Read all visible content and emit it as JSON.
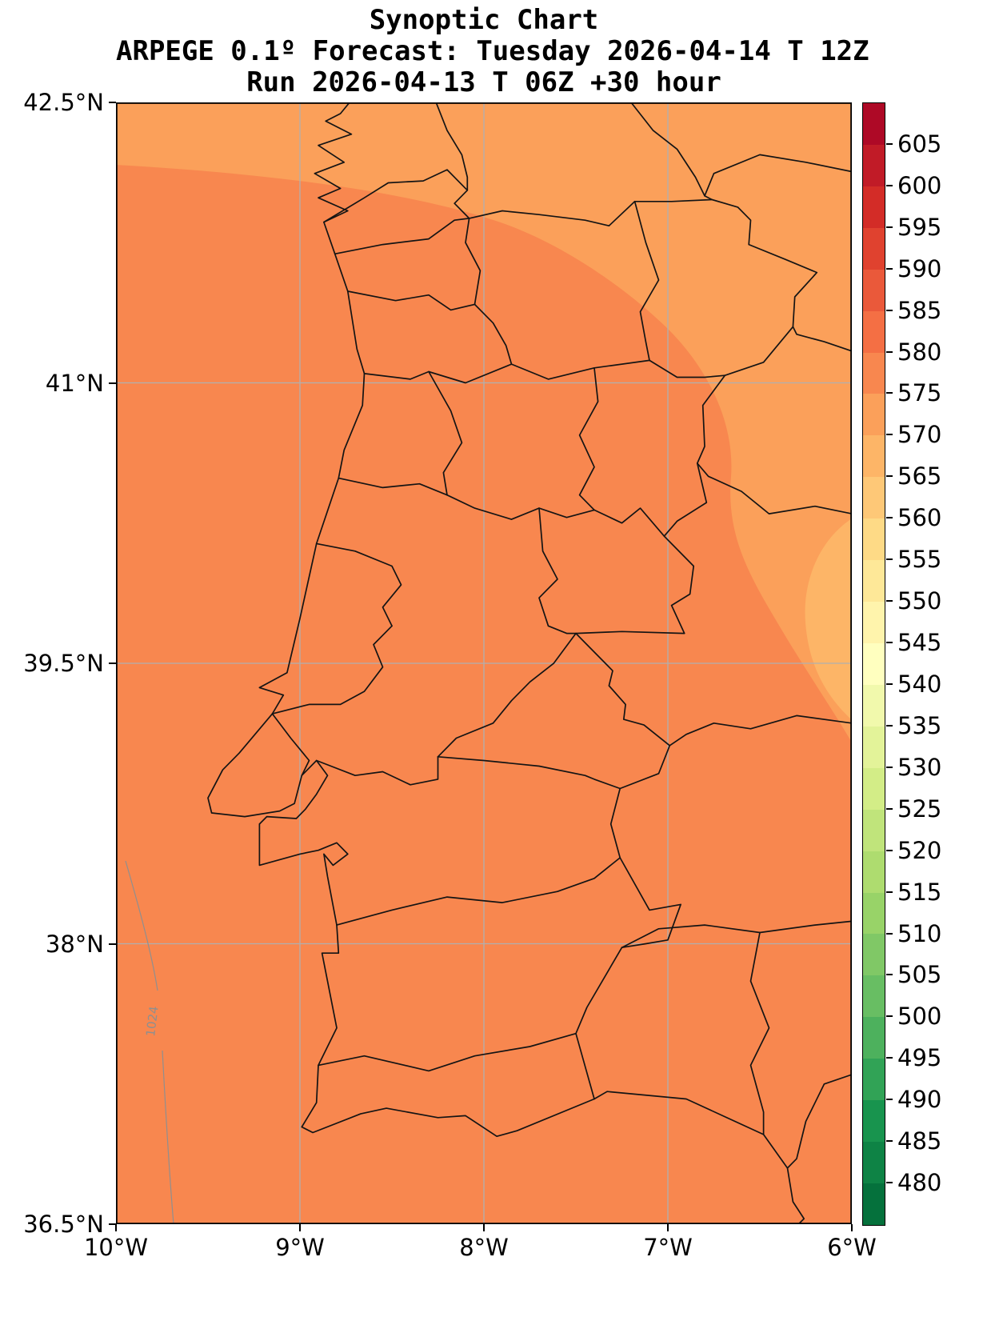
{
  "figure": {
    "title": "Synoptic Chart",
    "subtitle": "ARPEGE 0.1º Forecast: Tuesday 2026-04-14 T 12Z",
    "run_line": "Run 2026-04-13 T 06Z +30 hour"
  },
  "axes": {
    "y_ticks": [
      {
        "label": "42.5°N",
        "lat": 42.5
      },
      {
        "label": "41°N",
        "lat": 41
      },
      {
        "label": "39.5°N",
        "lat": 39.5
      },
      {
        "label": "38°N",
        "lat": 38
      },
      {
        "label": "36.5°N",
        "lat": 36.5
      }
    ],
    "x_ticks": [
      {
        "label": "10°W",
        "lon": -10
      },
      {
        "label": "9°W",
        "lon": -9
      },
      {
        "label": "8°W",
        "lon": -8
      },
      {
        "label": "7°W",
        "lon": -7
      },
      {
        "label": "6°W",
        "lon": -6
      }
    ],
    "lat_range": [
      36.5,
      42.5
    ],
    "lon_range": [
      -10,
      -6
    ],
    "grid": true,
    "grid_color": "#b0b0b0"
  },
  "colorbar": {
    "value_min": 475,
    "value_max": 610,
    "segment_step": 5,
    "tick_labels": [
      605,
      600,
      595,
      590,
      585,
      580,
      575,
      570,
      565,
      560,
      555,
      550,
      545,
      540,
      535,
      530,
      525,
      520,
      515,
      510,
      505,
      500,
      495,
      490,
      485,
      480
    ],
    "segment_colors_bottom_to_top": [
      "#05713c",
      "#0e8345",
      "#18944e",
      "#31a356",
      "#4db15d",
      "#68be63",
      "#80c866",
      "#98d368",
      "#aedc6f",
      "#c0e47b",
      "#d3ed87",
      "#e3f399",
      "#f1f9ac",
      "#ffffbf",
      "#fff4ac",
      "#fee898",
      "#feda86",
      "#fec877",
      "#fdb567",
      "#fba05a",
      "#f8874f",
      "#f46f44",
      "#ea593a",
      "#e0422f",
      "#d32c27",
      "#c11b27",
      "#ae0926"
    ]
  },
  "map": {
    "field_main_color": "#f8874f",
    "field_light_color": "#fba05a",
    "field_lighter_color": "#fdb567",
    "boundary_color": "#141414",
    "frame_color": "#000000",
    "isobar": {
      "label": "1024",
      "color": "#8f8f8f"
    }
  },
  "chart_data": {
    "type": "heatmap",
    "title": "Synoptic Chart",
    "subtitle": "ARPEGE 0.1º Forecast: Tuesday 2026-04-14 T 12Z",
    "run_line": "Run 2026-04-13 T 06Z +30 hour",
    "region_shown": "Portugal and western Spain with district/province boundaries",
    "x_axis": {
      "tick_labels": [
        "10°W",
        "9°W",
        "8°W",
        "7°W",
        "6°W"
      ],
      "range_lon": [
        -10,
        -6
      ]
    },
    "y_axis": {
      "tick_labels": [
        "42.5°N",
        "41°N",
        "39.5°N",
        "38°N",
        "36.5°N"
      ],
      "range_lat": [
        36.5,
        42.5
      ]
    },
    "colorbar": {
      "range": [
        475,
        610
      ],
      "tick_step": 5,
      "tick_labels": [
        605,
        600,
        595,
        590,
        585,
        580,
        575,
        570,
        565,
        560,
        555,
        550,
        545,
        540,
        535,
        530,
        525,
        520,
        515,
        510,
        505,
        500,
        495,
        490,
        485,
        480
      ],
      "colormap": "dark green (480) through yellow to dark red (605), reversed RdYlGn style",
      "position": "right"
    },
    "filled_field_regions": [
      {
        "region": "most of map: Portugal, SW Spain, Atlantic",
        "value_band": [
          575,
          580
        ]
      },
      {
        "region": "band across NW ocean corner, far north and eastern/NE Spain side",
        "value_band": [
          570,
          575
        ]
      },
      {
        "region": "small sliver at eastern map edge around 38.6-40.3°N",
        "value_band": [
          565,
          570
        ]
      }
    ],
    "contour_labels": [
      {
        "label": "1024",
        "location": "lower-left Atlantic area, faint gray isobar running roughly north-south"
      }
    ],
    "grid": true,
    "grid_positions": {
      "lon": [
        -9,
        -8,
        -7
      ],
      "lat": [
        41,
        39.5,
        38
      ]
    }
  }
}
